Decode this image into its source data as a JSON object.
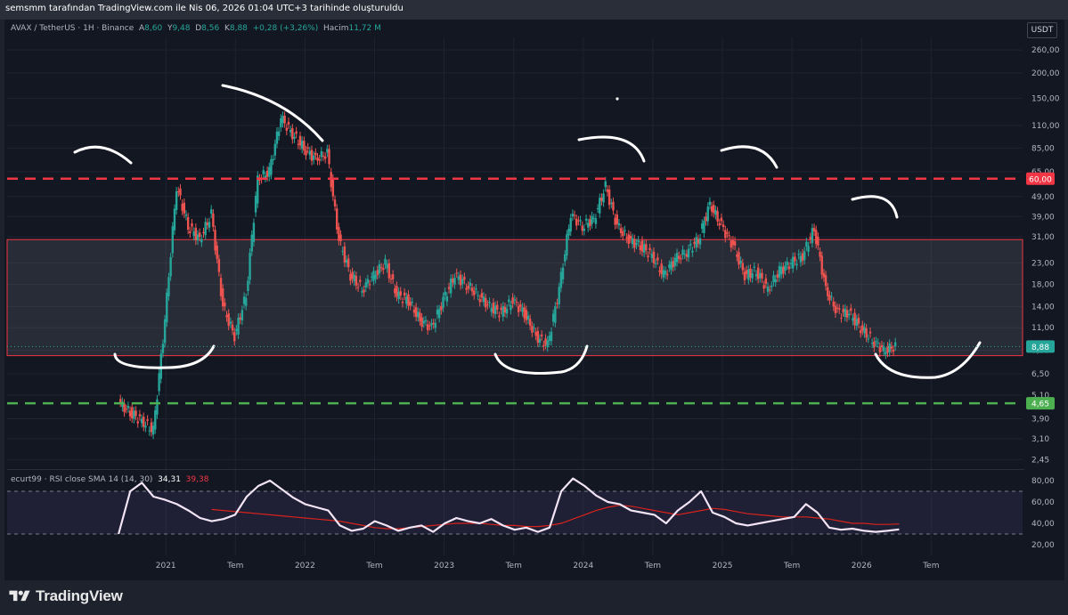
{
  "header": {
    "title": "semsmm tarafından TradingView.com ile Nis 06, 2026 01:04 UTC+3 tarihinde oluşturuldu"
  },
  "legend": {
    "symbol": "AVAX / TetherUS · 1H · Binance",
    "open_label": "A",
    "open": "8,60",
    "high_label": "Y",
    "high": "9,48",
    "low_label": "D",
    "low": "8,56",
    "close_label": "K",
    "close": "8,88",
    "change": "+0,28 (+3,26%)",
    "volume_label": "Hacim",
    "volume": "11,72 M"
  },
  "currency_button": "USDT",
  "rsi_legend": {
    "name": "ecurt99 · RSI close SMA 14 (14, 30)",
    "rsi_value": "34,31",
    "ma_value": "39,38"
  },
  "branding": {
    "name": "TradingView"
  },
  "chart_data": [
    {
      "type": "candlestick",
      "title": "AVAX / TetherUS · 1H · Binance",
      "y_scale": "log",
      "ylim": [
        2.2,
        300
      ],
      "y_ticks": [
        "260,00",
        "200,00",
        "150,00",
        "110,00",
        "85,00",
        "65,00",
        "49,00",
        "39,00",
        "31,00",
        "23,00",
        "18,00",
        "14,00",
        "11,00",
        "8,50",
        "6,50",
        "5,10",
        "3,90",
        "3,10",
        "2,45"
      ],
      "x_ticks": [
        "2021",
        "Tem",
        "2022",
        "Tem",
        "2023",
        "Tem",
        "2024",
        "Tem",
        "2025",
        "Tem",
        "2026",
        "Tem"
      ],
      "current_price": 8.88,
      "current_price_label": "8,88",
      "resistance": {
        "value": 60,
        "label": "60,00",
        "style": "dashed",
        "color": "#f23645"
      },
      "support": {
        "value": 4.65,
        "label": "4,65",
        "style": "dashed",
        "color": "#4caf50"
      },
      "range_zone": {
        "low": 8.0,
        "high": 30.0
      },
      "series": [
        {
          "name": "close",
          "x": [
            "2020-09",
            "2020-10",
            "2020-11",
            "2020-12",
            "2021-01",
            "2021-02",
            "2021-03",
            "2021-04",
            "2021-05",
            "2021-06",
            "2021-07",
            "2021-08",
            "2021-09",
            "2021-10",
            "2021-11",
            "2021-12",
            "2022-01",
            "2022-02",
            "2022-03",
            "2022-04",
            "2022-05",
            "2022-06",
            "2022-07",
            "2022-08",
            "2022-09",
            "2022-10",
            "2022-11",
            "2022-12",
            "2023-01",
            "2023-02",
            "2023-03",
            "2023-04",
            "2023-05",
            "2023-06",
            "2023-07",
            "2023-08",
            "2023-09",
            "2023-10",
            "2023-11",
            "2023-12",
            "2024-01",
            "2024-02",
            "2024-03",
            "2024-04",
            "2024-05",
            "2024-06",
            "2024-07",
            "2024-08",
            "2024-09",
            "2024-10",
            "2024-11",
            "2024-12",
            "2025-01",
            "2025-02",
            "2025-03",
            "2025-04",
            "2025-05",
            "2025-06",
            "2025-07",
            "2025-08",
            "2025-09",
            "2025-10",
            "2025-11",
            "2025-12",
            "2026-01",
            "2026-02",
            "2026-03",
            "2026-04"
          ],
          "values": [
            4.7,
            4.2,
            3.8,
            3.4,
            12,
            55,
            35,
            30,
            40,
            14,
            10,
            16,
            60,
            65,
            120,
            100,
            85,
            75,
            80,
            30,
            20,
            17,
            20,
            23,
            16,
            15,
            12,
            11,
            15,
            20,
            18,
            16,
            14,
            13,
            15,
            13,
            10,
            9,
            17,
            40,
            35,
            38,
            55,
            35,
            30,
            28,
            25,
            20,
            24,
            26,
            30,
            45,
            35,
            28,
            20,
            21,
            17,
            21,
            23,
            25,
            34,
            17,
            13,
            13,
            11,
            9.5,
            8.5,
            8.88
          ]
        }
      ]
    },
    {
      "type": "line",
      "title": "ecurt99 · RSI close SMA 14 (14, 30)",
      "ylim": [
        10,
        90
      ],
      "y_ticks": [
        "80,00",
        "60,00",
        "40,00",
        "20,00"
      ],
      "bands": {
        "upper": 70,
        "lower": 30
      },
      "series": [
        {
          "name": "RSI",
          "values": [
            30,
            70,
            78,
            65,
            62,
            58,
            52,
            45,
            42,
            44,
            48,
            65,
            75,
            80,
            72,
            64,
            58,
            55,
            52,
            38,
            33,
            35,
            42,
            38,
            33,
            36,
            38,
            32,
            40,
            45,
            42,
            40,
            44,
            38,
            34,
            36,
            32,
            36,
            70,
            82,
            75,
            66,
            60,
            58,
            52,
            50,
            48,
            40,
            52,
            60,
            70,
            50,
            46,
            40,
            38,
            40,
            42,
            44,
            46,
            58,
            50,
            36,
            34,
            35,
            33,
            32,
            33,
            34.31
          ]
        },
        {
          "name": "MA",
          "values": [
            60,
            60,
            60,
            60,
            58,
            56,
            55,
            54,
            53,
            52,
            51,
            50,
            49,
            48,
            47,
            46,
            45,
            44,
            43,
            42,
            40,
            38,
            36,
            35,
            35,
            36,
            37,
            38,
            39,
            40,
            40,
            40,
            39,
            38,
            38,
            37,
            37,
            38,
            40,
            44,
            48,
            52,
            55,
            57,
            56,
            54,
            52,
            50,
            48,
            50,
            52,
            54,
            53,
            51,
            49,
            48,
            47,
            46,
            46,
            46,
            45,
            44,
            42,
            40,
            40,
            39,
            39,
            39.38
          ]
        }
      ]
    }
  ]
}
